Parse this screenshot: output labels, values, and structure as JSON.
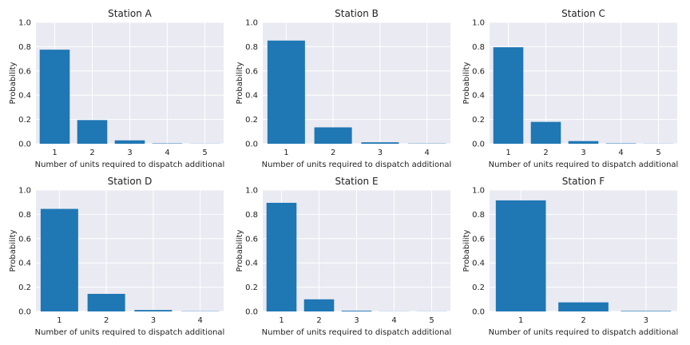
{
  "chart_data": [
    {
      "type": "bar",
      "title": "Station A",
      "xlabel": "Number of units required to dispatch additional",
      "ylabel": "Probability",
      "ylim": [
        0,
        1.0
      ],
      "yticks": [
        "0.0",
        "0.2",
        "0.4",
        "0.6",
        "0.8",
        "1.0"
      ],
      "categories": [
        "1",
        "2",
        "3",
        "4",
        "5"
      ],
      "values": [
        0.775,
        0.195,
        0.028,
        0.003,
        0.001
      ],
      "color": "#1f77b4",
      "grid": true
    },
    {
      "type": "bar",
      "title": "Station B",
      "xlabel": "Number of units required to dispatch additional",
      "ylabel": "Probability",
      "ylim": [
        0,
        1.0
      ],
      "yticks": [
        "0.0",
        "0.2",
        "0.4",
        "0.6",
        "0.8",
        "1.0"
      ],
      "categories": [
        "1",
        "2",
        "3",
        "4"
      ],
      "values": [
        0.85,
        0.135,
        0.012,
        0.002
      ],
      "color": "#1f77b4",
      "grid": true
    },
    {
      "type": "bar",
      "title": "Station C",
      "xlabel": "Number of units required to dispatch additional",
      "ylabel": "Probability",
      "ylim": [
        0,
        1.0
      ],
      "yticks": [
        "0.0",
        "0.2",
        "0.4",
        "0.6",
        "0.8",
        "1.0"
      ],
      "categories": [
        "1",
        "2",
        "3",
        "4",
        "5"
      ],
      "values": [
        0.795,
        0.18,
        0.022,
        0.003,
        0.001
      ],
      "color": "#1f77b4",
      "grid": true
    },
    {
      "type": "bar",
      "title": "Station D",
      "xlabel": "Number of units required to dispatch additional",
      "ylabel": "Probability",
      "ylim": [
        0,
        1.0
      ],
      "yticks": [
        "0.0",
        "0.2",
        "0.4",
        "0.6",
        "0.8",
        "1.0"
      ],
      "categories": [
        "1",
        "2",
        "3",
        "4"
      ],
      "values": [
        0.845,
        0.145,
        0.012,
        0.002
      ],
      "color": "#1f77b4",
      "grid": true
    },
    {
      "type": "bar",
      "title": "Station E",
      "xlabel": "Number of units required to dispatch additional",
      "ylabel": "Probability",
      "ylim": [
        0,
        1.0
      ],
      "yticks": [
        "0.0",
        "0.2",
        "0.4",
        "0.6",
        "0.8",
        "1.0"
      ],
      "categories": [
        "1",
        "2",
        "3",
        "4",
        "5"
      ],
      "values": [
        0.895,
        0.1,
        0.006,
        0.001,
        0.001
      ],
      "color": "#1f77b4",
      "grid": true
    },
    {
      "type": "bar",
      "title": "Station F",
      "xlabel": "Number of units required to dispatch additional",
      "ylabel": "Probability",
      "ylim": [
        0,
        1.0
      ],
      "yticks": [
        "0.0",
        "0.2",
        "0.4",
        "0.6",
        "0.8",
        "1.0"
      ],
      "categories": [
        "1",
        "2",
        "3"
      ],
      "values": [
        0.915,
        0.075,
        0.004
      ],
      "color": "#1f77b4",
      "grid": true
    }
  ]
}
